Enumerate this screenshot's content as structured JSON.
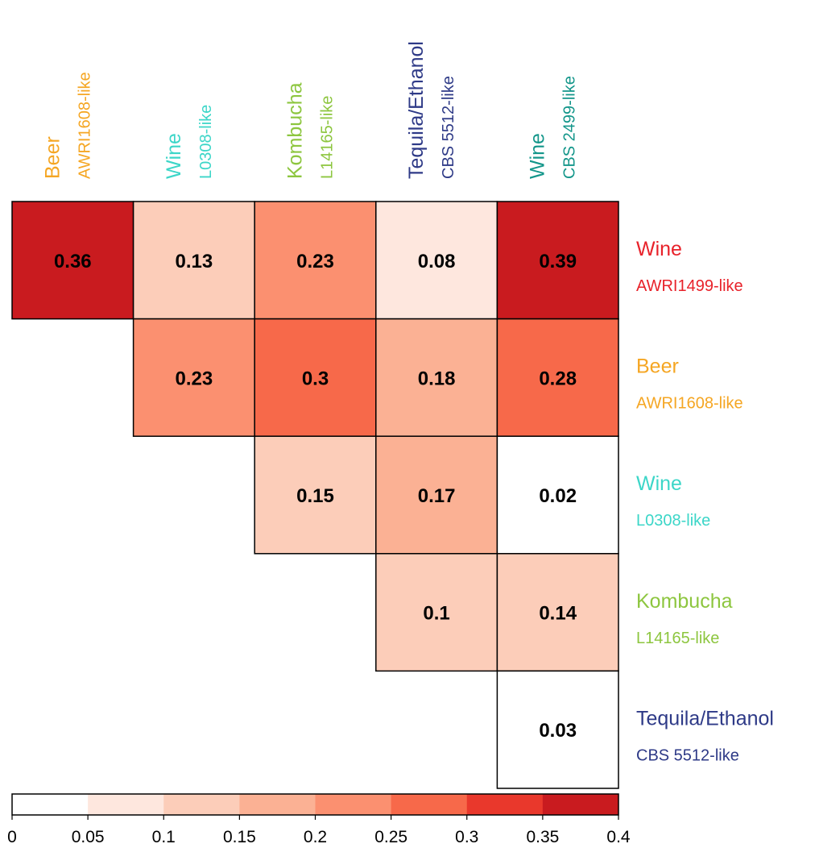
{
  "chart_data": {
    "type": "heatmap",
    "columns": [
      {
        "group": "Beer",
        "strain": "AWRI1608-like",
        "color": "#F5A623"
      },
      {
        "group": "Wine",
        "strain": "L0308-like",
        "color": "#3CD6C8"
      },
      {
        "group": "Kombucha",
        "strain": "L14165-like",
        "color": "#8DC63F"
      },
      {
        "group": "Tequila/Ethanol",
        "strain": "CBS 5512-like",
        "color": "#2E3A87"
      },
      {
        "group": "Wine",
        "strain": "CBS 2499-like",
        "color": "#13968A"
      }
    ],
    "rows": [
      {
        "group": "Wine",
        "strain": "AWRI1499-like",
        "color": "#E8222A"
      },
      {
        "group": "Beer",
        "strain": "AWRI1608-like",
        "color": "#F5A623"
      },
      {
        "group": "Wine",
        "strain": "L0308-like",
        "color": "#3CD6C8"
      },
      {
        "group": "Kombucha",
        "strain": "L14165-like",
        "color": "#8DC63F"
      },
      {
        "group": "Tequila/Ethanol",
        "strain": "CBS 5512-like",
        "color": "#2E3A87"
      }
    ],
    "matrix": [
      [
        0.36,
        0.13,
        0.23,
        0.08,
        0.39
      ],
      [
        null,
        0.23,
        0.3,
        0.18,
        0.28
      ],
      [
        null,
        null,
        0.15,
        0.17,
        0.02
      ],
      [
        null,
        null,
        null,
        0.1,
        0.14
      ],
      [
        null,
        null,
        null,
        null,
        0.03
      ]
    ],
    "colorbar": {
      "min": 0,
      "max": 0.4,
      "ticks": [
        "0",
        "0.05",
        "0.1",
        "0.15",
        "0.2",
        "0.25",
        "0.3",
        "0.35",
        "0.4"
      ],
      "colors": [
        "#FFFFFF",
        "#FEE7DE",
        "#FCCDB9",
        "#FBB194",
        "#FB9070",
        "#F7694A",
        "#E9382C",
        "#C91B1F"
      ]
    }
  }
}
